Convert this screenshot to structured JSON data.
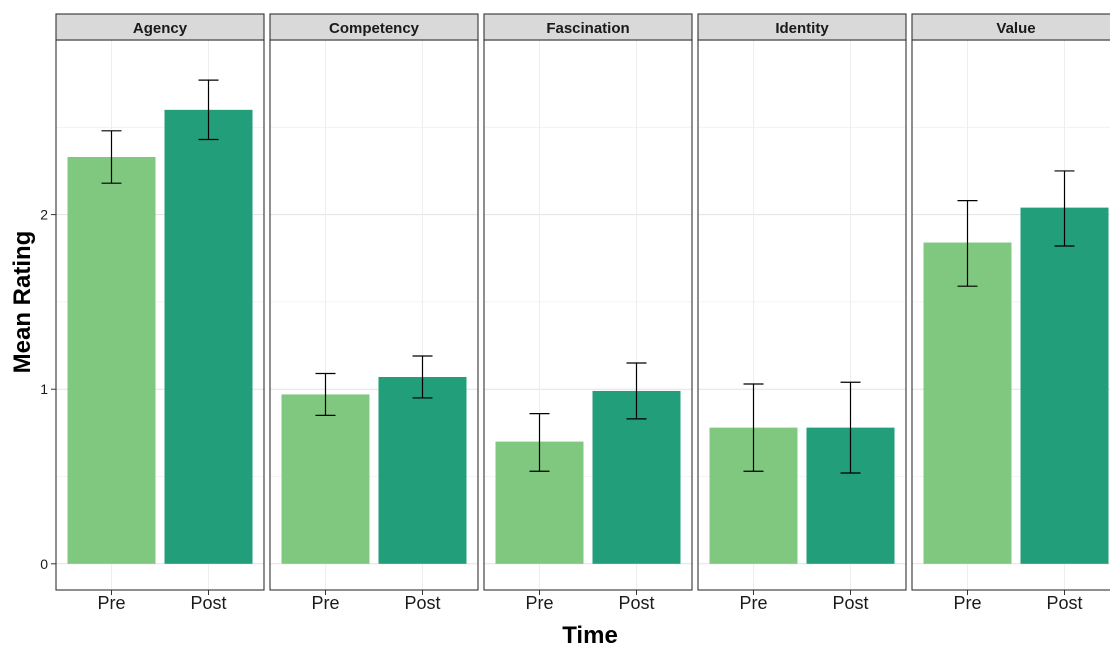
{
  "chart_data": {
    "type": "bar",
    "facets": [
      "Agency",
      "Competency",
      "Fascination",
      "Identity",
      "Value"
    ],
    "categories": [
      "Pre",
      "Post"
    ],
    "xlabel": "Time",
    "ylabel": "Mean Rating",
    "ylim": [
      -0.15,
      3.0
    ],
    "yticks": [
      0,
      1,
      2
    ],
    "colors": {
      "Pre": "#80c87f",
      "Post": "#229e7a"
    },
    "grid": true,
    "error_bars": true,
    "panels": [
      {
        "facet": "Agency",
        "values": [
          2.33,
          2.6
        ],
        "error_low": [
          2.18,
          2.43
        ],
        "error_high": [
          2.48,
          2.77
        ]
      },
      {
        "facet": "Competency",
        "values": [
          0.97,
          1.07
        ],
        "error_low": [
          0.85,
          0.95
        ],
        "error_high": [
          1.09,
          1.19
        ]
      },
      {
        "facet": "Fascination",
        "values": [
          0.7,
          0.99
        ],
        "error_low": [
          0.53,
          0.83
        ],
        "error_high": [
          0.86,
          1.15
        ]
      },
      {
        "facet": "Identity",
        "values": [
          0.78,
          0.78
        ],
        "error_low": [
          0.53,
          0.52
        ],
        "error_high": [
          1.03,
          1.04
        ]
      },
      {
        "facet": "Value",
        "values": [
          1.84,
          2.04
        ],
        "error_low": [
          1.59,
          1.82
        ],
        "error_high": [
          2.08,
          2.25
        ]
      }
    ]
  }
}
